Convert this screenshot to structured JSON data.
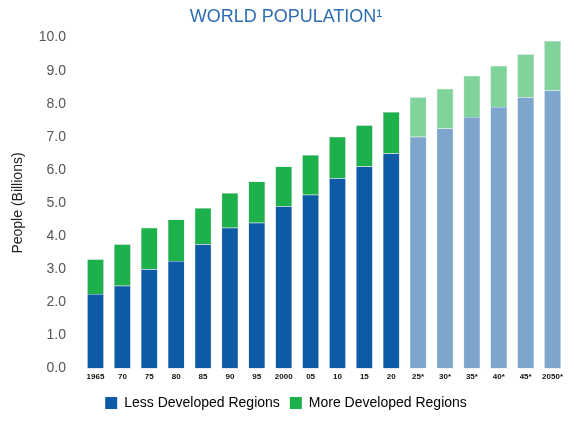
{
  "chart_data": {
    "type": "bar",
    "title": "WORLD POPULATION¹",
    "y_label": "People (Billions)",
    "categories": [
      "1965",
      "70",
      "75",
      "80",
      "85",
      "90",
      "95",
      "2000",
      "05",
      "10",
      "15",
      "20",
      "25*",
      "30*",
      "35*",
      "40*",
      "45*",
      "2050*"
    ],
    "series": [
      {
        "name": "Less Developed Regions",
        "values": [
          2.25,
          2.5,
          3.0,
          3.25,
          3.75,
          4.25,
          4.4,
          4.9,
          5.25,
          5.75,
          6.1,
          6.5,
          7.0,
          7.25,
          7.6,
          7.9,
          8.2,
          8.4
        ],
        "colors": [
          "#0d5aa7",
          "#0d5aa7",
          "#0d5aa7",
          "#0d5aa7",
          "#0d5aa7",
          "#0d5aa7",
          "#0d5aa7",
          "#0d5aa7",
          "#0d5aa7",
          "#0d5aa7",
          "#0d5aa7",
          "#0d5aa7",
          "#7ea6cd",
          "#7ea6cd",
          "#7ea6cd",
          "#7ea6cd",
          "#7ea6cd",
          "#7ea6cd"
        ]
      },
      {
        "name": "More Developed Regions",
        "values": [
          1.05,
          1.25,
          1.25,
          1.25,
          1.1,
          1.05,
          1.25,
          1.2,
          1.2,
          1.25,
          1.25,
          1.25,
          1.2,
          1.2,
          1.25,
          1.25,
          1.3,
          1.5
        ],
        "colors": [
          "#1db14b",
          "#1db14b",
          "#1db14b",
          "#1db14b",
          "#1db14b",
          "#1db14b",
          "#1db14b",
          "#1db14b",
          "#1db14b",
          "#1db14b",
          "#1db14b",
          "#1db14b",
          "#80d39b",
          "#80d39b",
          "#80d39b",
          "#80d39b",
          "#80d39b",
          "#80d39b"
        ]
      }
    ],
    "stacked": true,
    "ylim": [
      0,
      10
    ],
    "yticks": [
      {
        "value": 0,
        "label": "0.0"
      },
      {
        "value": 1,
        "label": "1.0"
      },
      {
        "value": 2,
        "label": "2.0"
      },
      {
        "value": 3,
        "label": "3.0"
      },
      {
        "value": 4,
        "label": "4.0"
      },
      {
        "value": 5,
        "label": "5.0"
      },
      {
        "value": 6,
        "label": "6.0"
      },
      {
        "value": 7,
        "label": "7.0"
      },
      {
        "value": 8,
        "label": "8.0"
      },
      {
        "value": 9,
        "label": "9.0"
      },
      {
        "value": 10,
        "label": "10.0"
      }
    ],
    "grid": false,
    "legend": "bottom"
  }
}
